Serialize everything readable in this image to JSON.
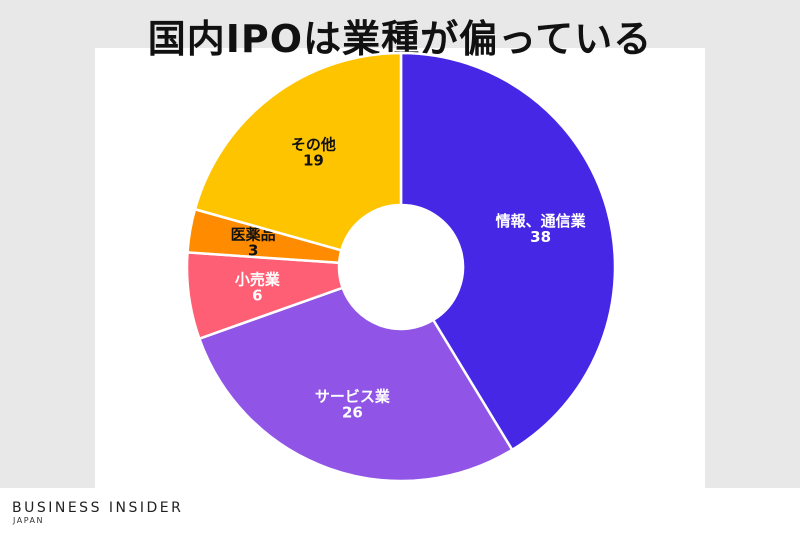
{
  "title": "国内IPOは業種が偏っている",
  "brand": {
    "name": "BUSINESS INSIDER",
    "region": "JAPAN"
  },
  "chart_data": {
    "type": "pie",
    "variant": "donut",
    "title": "国内IPOは業種が偏っている",
    "slices": [
      {
        "label": "情報、通信業",
        "value": 38,
        "color": "#4527e5",
        "label_color": "#ffffff"
      },
      {
        "label": "サービス業",
        "value": 26,
        "color": "#9055e6",
        "label_color": "#ffffff"
      },
      {
        "label": "小売業",
        "value": 6,
        "color": "#ff5f75",
        "label_color": "#ffffff"
      },
      {
        "label": "医薬品",
        "value": 3,
        "color": "#ff8c00",
        "label_color": "#111111"
      },
      {
        "label": "その他",
        "value": 19,
        "color": "#ffc400",
        "label_color": "#111111"
      }
    ]
  }
}
